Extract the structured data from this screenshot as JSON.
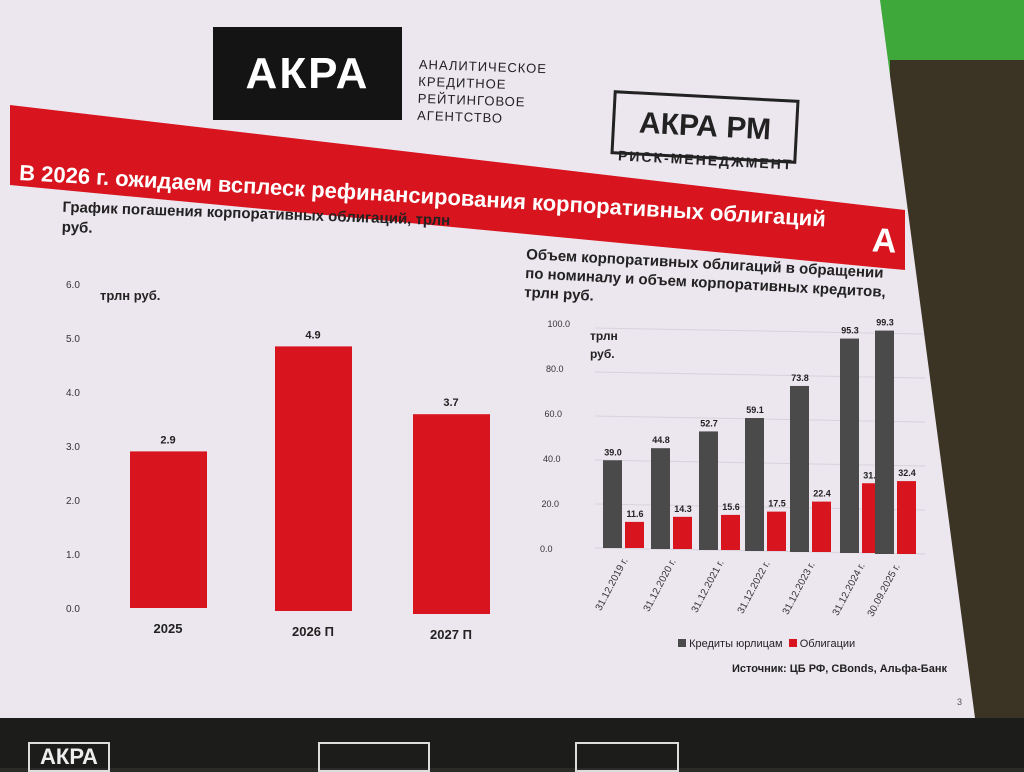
{
  "logos": {
    "akra": "АКРА",
    "akra_lines": [
      "АНАЛИТИЧЕСКОЕ",
      "КРЕДИТНОЕ",
      "РЕЙТИНГОВОЕ",
      "АГЕНТСТВО"
    ],
    "akra_rm": "АКРА РМ",
    "akra_rm_sub": "РИСК-МЕНЕДЖМЕНТ",
    "alfa": "А"
  },
  "slide": {
    "title": "В 2026  г. ожидаем всплеск рефинансирования корпоративных облигаций",
    "page_number": "3",
    "source": "Источник: ЦБ РФ, CBonds, Альфа-Банк",
    "accent": "#d8141e",
    "dark": "#4a4a4a"
  },
  "chart_data": [
    {
      "type": "bar",
      "title": "График погашения корпоративных облигаций, трлн руб.",
      "ylabel": "трлн руб.",
      "categories": [
        "2025",
        "2026 П",
        "2027 П"
      ],
      "values": [
        2.9,
        4.9,
        3.7
      ],
      "value_labels": [
        "2.9",
        "4.9",
        "3.7"
      ],
      "ylim": [
        0,
        6
      ],
      "yticks": [
        "0.0",
        "1.0",
        "2.0",
        "3.0",
        "4.0",
        "5.0",
        "6.0"
      ]
    },
    {
      "type": "bar",
      "title": "Объем корпоративных облигаций в обращении по номиналу и объем корпоративных кредитов, трлн руб.",
      "ylabel": "трлн руб.",
      "categories": [
        "31.12.2019 г.",
        "31.12.2020 г.",
        "31.12.2021 г.",
        "31.12.2022 г.",
        "31.12.2023 г.",
        "31.12.2024 г.",
        "30.09.2025 г."
      ],
      "series": [
        {
          "name": "Кредиты юрлицам",
          "values": [
            39.0,
            44.8,
            52.7,
            59.1,
            73.8,
            95.3,
            99.3
          ],
          "labels": [
            "39.0",
            "44.8",
            "52.7",
            "59.1",
            "73.8",
            "95.3",
            "99.3"
          ]
        },
        {
          "name": "Облигации",
          "values": [
            11.6,
            14.3,
            15.6,
            17.5,
            22.4,
            31.0,
            32.4
          ],
          "labels": [
            "11.6",
            "14.3",
            "15.6",
            "17.5",
            "22.4",
            "31.0",
            "32.4"
          ]
        }
      ],
      "ylim": [
        0,
        100
      ],
      "yticks": [
        "0.0",
        "20.0",
        "40.0",
        "60.0",
        "80.0",
        "100.0"
      ],
      "legend": "bottom"
    }
  ]
}
